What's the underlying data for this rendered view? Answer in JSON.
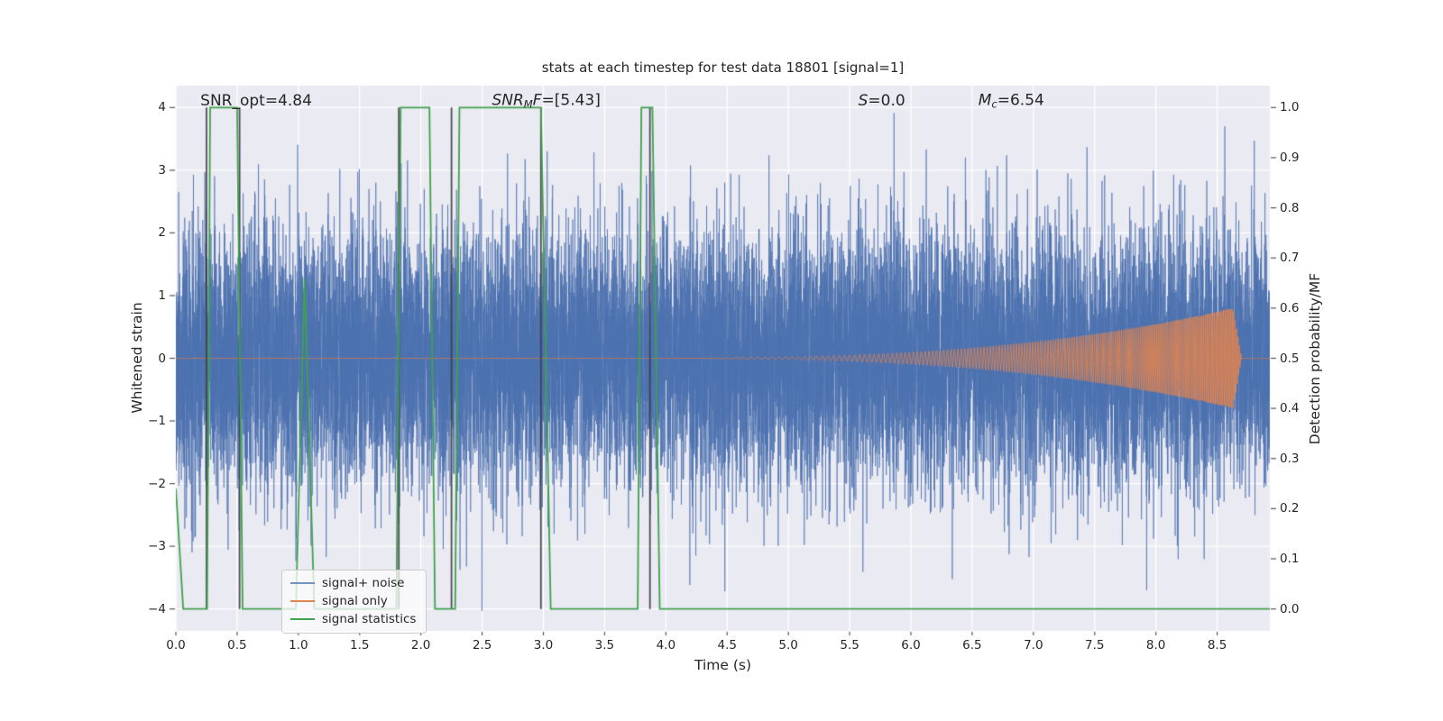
{
  "chart_data": {
    "type": "line",
    "title": "stats at each timestep for test data 18801 [signal=1]",
    "xlabel": "Time (s)",
    "ylabel_left": "Whitened strain",
    "ylabel_right": "Detection probability/MF",
    "xlim": [
      0,
      8.93
    ],
    "ylim_left": [
      -4.35,
      4.35
    ],
    "ylim_right": [
      -0.04375,
      1.04375
    ],
    "grid": true,
    "background": "#eaeaf2",
    "grid_color": "#ffffff",
    "x_tick_labels": [
      "0.0",
      "0.5",
      "1.0",
      "1.5",
      "2.0",
      "2.5",
      "3.0",
      "3.5",
      "4.0",
      "4.5",
      "5.0",
      "5.5",
      "6.0",
      "6.5",
      "7.0",
      "7.5",
      "8.0",
      "8.5"
    ],
    "y_tick_labels_left": [
      "−4",
      "−3",
      "−2",
      "−1",
      "0",
      "1",
      "2",
      "3",
      "4"
    ],
    "y_tick_labels_right": [
      "0.0",
      "0.1",
      "0.2",
      "0.3",
      "0.4",
      "0.5",
      "0.6",
      "0.7",
      "0.8",
      "0.9",
      "1.0"
    ],
    "annotations": [
      {
        "x": 0.2,
        "y": 4.1,
        "parts": [
          {
            "t": "SNR_opt=4.84"
          }
        ]
      },
      {
        "x": 2.58,
        "y": 4.1,
        "parts": [
          {
            "t": "SNR",
            "i": true
          },
          {
            "t": "M",
            "i": true,
            "sub": true
          },
          {
            "t": "F",
            "i": true
          },
          {
            "t": "=[5.43]"
          }
        ]
      },
      {
        "x": 5.57,
        "y": 4.1,
        "parts": [
          {
            "t": "S",
            "i": true
          },
          {
            "t": "=0.0"
          }
        ]
      },
      {
        "x": 6.55,
        "y": 4.1,
        "parts": [
          {
            "t": "M",
            "i": true
          },
          {
            "t": "c",
            "i": true,
            "sub": true
          },
          {
            "t": "=6.54"
          }
        ]
      }
    ],
    "vlines": {
      "color": "rgba(60,60,70,0.9)",
      "times": [
        0.25,
        0.52,
        1.82,
        2.25,
        2.98,
        3.87
      ]
    },
    "series": [
      {
        "name": "signal+ noise",
        "type": "noise",
        "color_stroke": "rgba(76,114,176,0.68)",
        "std": 1.02,
        "samples": 14000
      },
      {
        "name": "signal only",
        "type": "chirp",
        "color_stroke": "rgba(221,132,82,0.95)",
        "t_start": 3.4,
        "t_merger": 8.63,
        "t_end": 8.7,
        "amp_max": 0.8,
        "amp_power": 3.0,
        "f_start": 12,
        "f_end": 85
      },
      {
        "name": "signal statistics",
        "type": "step",
        "color_stroke": "#3fa24c",
        "points": [
          [
            0,
            0.24
          ],
          [
            0.06,
            0
          ],
          [
            0.255,
            0
          ],
          [
            0.28,
            1
          ],
          [
            0.5,
            1
          ],
          [
            0.545,
            0
          ],
          [
            0.98,
            0
          ],
          [
            1.05,
            0.66
          ],
          [
            1.13,
            0
          ],
          [
            1.8,
            0
          ],
          [
            1.835,
            1
          ],
          [
            2.07,
            1
          ],
          [
            2.115,
            0
          ],
          [
            2.28,
            0
          ],
          [
            2.315,
            1
          ],
          [
            2.98,
            1
          ],
          [
            3.06,
            0
          ],
          [
            3.77,
            0
          ],
          [
            3.8,
            1
          ],
          [
            3.89,
            1
          ],
          [
            3.95,
            0
          ],
          [
            8.93,
            0
          ]
        ]
      }
    ],
    "legend": {
      "items": [
        {
          "label": "signal+ noise",
          "color": "rgba(76,114,176,0.75)"
        },
        {
          "label": "signal only",
          "color": "#dd8452"
        },
        {
          "label": "signal statistics",
          "color": "#3fa24c"
        }
      ]
    }
  }
}
